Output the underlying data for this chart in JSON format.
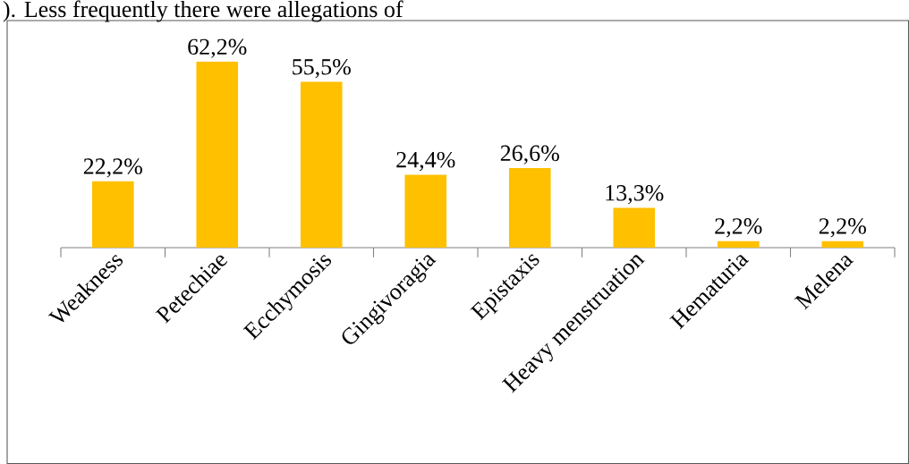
{
  "chart_data": {
    "type": "bar",
    "annotations": [
      "). Less frequently there were allegations of"
    ],
    "categories": [
      "Weakness",
      "Petechiae",
      "Ecchymosis",
      "Gingivoragia",
      "Epistaxis",
      "Heavy menstruation",
      "Hematuria",
      "Melena"
    ],
    "values": [
      22.2,
      62.2,
      55.5,
      24.4,
      26.6,
      13.3,
      2.2,
      2.2
    ],
    "value_labels": [
      "22,2%",
      "62,2%",
      "55,5%",
      "24,4%",
      "26,6%",
      "13,3%",
      "2,2%",
      "2,2%"
    ],
    "color": "#ffc000"
  }
}
